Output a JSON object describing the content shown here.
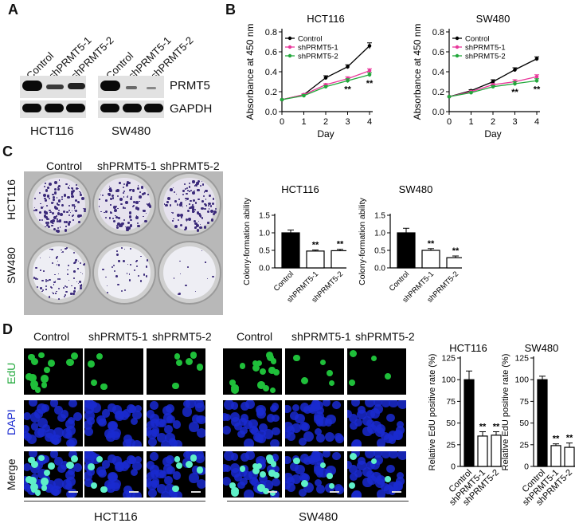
{
  "panel_labels": {
    "a": "A",
    "b": "B",
    "c": "C",
    "d": "D"
  },
  "blot": {
    "lanes": [
      "Control",
      "shPRMT5-1",
      "shPRMT5-2"
    ],
    "proteins": [
      "PRMT5",
      "GAPDH"
    ],
    "cell_lines": [
      "HCT116",
      "SW480"
    ]
  },
  "panel_c": {
    "columns": [
      "Control",
      "shPRMT5-1",
      "shPRMT5-2"
    ],
    "rows": [
      "HCT116",
      "SW480"
    ]
  },
  "panel_d": {
    "columns": [
      "Control",
      "shPRMT5-1",
      "shPRMT5-2",
      "Control",
      "shPRMT5-1",
      "shPRMT5-2"
    ],
    "rows": [
      "EdU",
      "DAPI",
      "Merge"
    ],
    "groups": [
      "HCT116",
      "SW480"
    ]
  },
  "colors": {
    "control": "#000000",
    "sh1": "#e8379a",
    "sh2": "#22a83c",
    "edu": "#1fbf3a",
    "dapi": "#1a2ad0"
  },
  "chart_data": [
    {
      "type": "line",
      "title": "HCT116",
      "xlabel": "Day",
      "ylabel": "Absorbance at 450 nm",
      "x": [
        0,
        1,
        2,
        3,
        4
      ],
      "xlim": [
        0,
        4
      ],
      "ylim": [
        0.0,
        0.8
      ],
      "yticks": [
        "0.0",
        "0.2",
        "0.4",
        "0.6",
        "0.8"
      ],
      "xticks": [
        "0",
        "1",
        "2",
        "3",
        "4"
      ],
      "series": [
        {
          "name": "Control",
          "values": [
            0.12,
            0.17,
            0.34,
            0.45,
            0.66
          ],
          "err": [
            0,
            0.01,
            0.02,
            0.02,
            0.03
          ],
          "color": "#000000"
        },
        {
          "name": "shPRMT5-1",
          "values": [
            0.12,
            0.17,
            0.27,
            0.33,
            0.41
          ],
          "err": [
            0,
            0.01,
            0.01,
            0.02,
            0.02
          ],
          "color": "#e8379a"
        },
        {
          "name": "shPRMT5-2",
          "values": [
            0.12,
            0.16,
            0.25,
            0.31,
            0.37
          ],
          "err": [
            0,
            0.01,
            0.01,
            0.02,
            0.02
          ],
          "color": "#22a83c"
        }
      ],
      "annotations": [
        {
          "x": 3,
          "text": "**"
        },
        {
          "x": 4,
          "text": "**"
        }
      ]
    },
    {
      "type": "line",
      "title": "SW480",
      "xlabel": "Day",
      "ylabel": "Absorbance at 450 nm",
      "x": [
        0,
        1,
        2,
        3,
        4
      ],
      "xlim": [
        0,
        4
      ],
      "ylim": [
        0.0,
        0.8
      ],
      "yticks": [
        "0.0",
        "0.2",
        "0.4",
        "0.6",
        "0.8"
      ],
      "xticks": [
        "0",
        "1",
        "2",
        "3",
        "4"
      ],
      "series": [
        {
          "name": "Control",
          "values": [
            0.15,
            0.21,
            0.3,
            0.42,
            0.53
          ],
          "err": [
            0,
            0.01,
            0.02,
            0.02,
            0.02
          ],
          "color": "#000000"
        },
        {
          "name": "shPRMT5-1",
          "values": [
            0.15,
            0.2,
            0.27,
            0.3,
            0.35
          ],
          "err": [
            0,
            0.01,
            0.01,
            0.02,
            0.02
          ],
          "color": "#e8379a"
        },
        {
          "name": "shPRMT5-2",
          "values": [
            0.15,
            0.19,
            0.25,
            0.28,
            0.31
          ],
          "err": [
            0,
            0.01,
            0.01,
            0.02,
            0.02
          ],
          "color": "#22a83c"
        }
      ],
      "annotations": [
        {
          "x": 3,
          "text": "**"
        },
        {
          "x": 4,
          "text": "**"
        }
      ]
    },
    {
      "type": "bar",
      "title": "HCT116",
      "ylabel": "Colony-formation ability",
      "categories": [
        "Control",
        "shPRMT5-1",
        "shPRMT5-2"
      ],
      "values": [
        1.0,
        0.48,
        0.49
      ],
      "err": [
        0.08,
        0.03,
        0.04
      ],
      "ylim": [
        0.0,
        1.5
      ],
      "yticks": [
        "0.0",
        "0.5",
        "1.0",
        "1.5"
      ],
      "annotations": [
        "",
        "**",
        "**"
      ]
    },
    {
      "type": "bar",
      "title": "SW480",
      "ylabel": "Colony-formation ability",
      "categories": [
        "Control",
        "shPRMT5-1",
        "shPRMT5-2"
      ],
      "values": [
        1.0,
        0.5,
        0.29
      ],
      "err": [
        0.13,
        0.05,
        0.05
      ],
      "ylim": [
        0.0,
        1.5
      ],
      "yticks": [
        "0.0",
        "0.5",
        "1.0",
        "1.5"
      ],
      "annotations": [
        "",
        "**",
        "**"
      ]
    },
    {
      "type": "bar",
      "title": "HCT116",
      "ylabel": "Relative EdU positive rate (%)",
      "categories": [
        "Control",
        "shPRMT5-1",
        "shPRMT5-2"
      ],
      "values": [
        100,
        35,
        36
      ],
      "err": [
        10,
        5,
        4
      ],
      "ylim": [
        0,
        125
      ],
      "yticks": [
        "0",
        "25",
        "50",
        "75",
        "100",
        "125"
      ],
      "annotations": [
        "",
        "**",
        "**"
      ]
    },
    {
      "type": "bar",
      "title": "SW480",
      "ylabel": "Relative EdU positive rate (%)",
      "categories": [
        "Control",
        "shPRMT5-1",
        "shPRMT5-2"
      ],
      "values": [
        100,
        24,
        22
      ],
      "err": [
        4,
        2,
        5
      ],
      "ylim": [
        0,
        125
      ],
      "yticks": [
        "0",
        "25",
        "50",
        "75",
        "100",
        "125"
      ],
      "annotations": [
        "",
        "**",
        "**"
      ]
    }
  ]
}
